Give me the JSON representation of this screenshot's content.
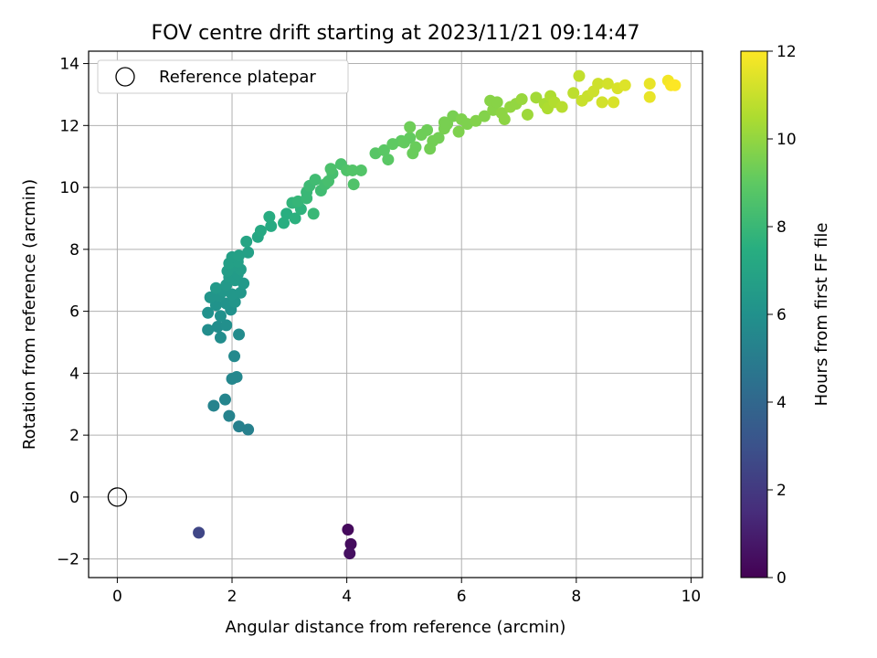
{
  "chart_data": {
    "type": "scatter",
    "title": "FOV centre drift starting at 2023/11/21 09:14:47",
    "xlabel": "Angular distance from reference (arcmin)",
    "ylabel": "Rotation from reference (arcmin)",
    "xlim": [
      -0.5,
      10.2
    ],
    "ylim": [
      -2.6,
      14.4
    ],
    "xticks": [
      0,
      2,
      4,
      6,
      8,
      10
    ],
    "yticks": [
      -2,
      0,
      2,
      4,
      6,
      8,
      10,
      12,
      14
    ],
    "grid": true,
    "legend": {
      "position": "top-left",
      "entries": [
        "Reference platepar"
      ]
    },
    "reference_point": {
      "label": "Reference platepar",
      "x": 0,
      "y": 0,
      "marker": "open-circle"
    },
    "colorbar": {
      "label": "Hours from first FF file",
      "colormap": "viridis",
      "range": [
        0,
        12
      ],
      "ticks": [
        0,
        2,
        4,
        6,
        8,
        10,
        12
      ]
    },
    "series": [
      {
        "points": [
          [
            4.02,
            -1.05,
            0.3
          ],
          [
            4.07,
            -1.52,
            0.4
          ],
          [
            4.05,
            -1.82,
            0.5
          ],
          [
            1.42,
            -1.15,
            2.5
          ],
          [
            2.28,
            2.18,
            5.2
          ],
          [
            2.12,
            2.28,
            5.2
          ],
          [
            1.95,
            2.62,
            5.3
          ],
          [
            1.68,
            2.95,
            5.3
          ],
          [
            1.88,
            3.15,
            5.4
          ],
          [
            2.08,
            3.88,
            5.5
          ],
          [
            2.0,
            3.82,
            5.5
          ],
          [
            2.04,
            4.55,
            5.6
          ],
          [
            2.12,
            5.25,
            5.7
          ],
          [
            1.8,
            5.15,
            5.8
          ],
          [
            1.58,
            5.4,
            5.8
          ],
          [
            1.75,
            5.5,
            5.8
          ],
          [
            1.9,
            5.55,
            5.9
          ],
          [
            1.58,
            5.95,
            6.0
          ],
          [
            1.98,
            6.05,
            6.0
          ],
          [
            1.8,
            5.85,
            6.0
          ],
          [
            1.72,
            6.2,
            6.1
          ],
          [
            1.9,
            6.25,
            6.1
          ],
          [
            2.05,
            6.3,
            6.2
          ],
          [
            1.62,
            6.45,
            6.2
          ],
          [
            1.78,
            6.5,
            6.2
          ],
          [
            1.85,
            6.65,
            6.3
          ],
          [
            2.0,
            6.55,
            6.3
          ],
          [
            2.15,
            6.6,
            6.3
          ],
          [
            1.72,
            6.75,
            6.4
          ],
          [
            1.9,
            6.85,
            6.4
          ],
          [
            2.2,
            6.9,
            6.4
          ],
          [
            2.05,
            7.0,
            6.5
          ],
          [
            1.95,
            7.1,
            6.5
          ],
          [
            2.1,
            7.2,
            6.5
          ],
          [
            1.92,
            7.3,
            6.6
          ],
          [
            2.15,
            7.35,
            6.6
          ],
          [
            2.0,
            7.45,
            6.6
          ],
          [
            1.95,
            7.55,
            6.7
          ],
          [
            2.1,
            7.6,
            6.7
          ],
          [
            2.0,
            7.75,
            6.7
          ],
          [
            2.12,
            7.8,
            6.8
          ],
          [
            2.28,
            7.9,
            6.8
          ],
          [
            2.25,
            8.25,
            7.0
          ],
          [
            2.45,
            8.4,
            7.1
          ],
          [
            2.5,
            8.6,
            7.2
          ],
          [
            2.68,
            8.75,
            7.3
          ],
          [
            2.65,
            9.05,
            7.4
          ],
          [
            2.9,
            8.85,
            7.5
          ],
          [
            2.95,
            9.15,
            7.5
          ],
          [
            3.1,
            9.0,
            7.6
          ],
          [
            3.2,
            9.3,
            7.7
          ],
          [
            3.05,
            9.5,
            7.8
          ],
          [
            3.15,
            9.55,
            7.9
          ],
          [
            3.3,
            9.65,
            8.0
          ],
          [
            3.42,
            9.15,
            8.0
          ],
          [
            3.3,
            9.85,
            8.0
          ],
          [
            3.35,
            10.05,
            8.1
          ],
          [
            3.45,
            10.25,
            8.2
          ],
          [
            3.55,
            9.9,
            8.2
          ],
          [
            3.62,
            10.1,
            8.3
          ],
          [
            3.68,
            10.2,
            8.4
          ],
          [
            3.75,
            10.45,
            8.4
          ],
          [
            3.72,
            10.6,
            8.5
          ],
          [
            3.9,
            10.75,
            8.5
          ],
          [
            4.0,
            10.55,
            8.6
          ],
          [
            4.12,
            10.1,
            8.6
          ],
          [
            4.1,
            10.55,
            8.7
          ],
          [
            4.25,
            10.55,
            8.7
          ],
          [
            4.5,
            11.1,
            8.8
          ],
          [
            4.65,
            11.2,
            8.9
          ],
          [
            4.72,
            10.9,
            8.9
          ],
          [
            4.8,
            11.4,
            9.0
          ],
          [
            4.95,
            11.5,
            9.0
          ],
          [
            5.1,
            11.6,
            9.1
          ],
          [
            5.0,
            11.45,
            9.1
          ],
          [
            5.2,
            11.3,
            9.2
          ],
          [
            5.15,
            11.1,
            9.2
          ],
          [
            5.3,
            11.7,
            9.3
          ],
          [
            5.1,
            11.95,
            9.3
          ],
          [
            5.4,
            11.85,
            9.3
          ],
          [
            5.5,
            11.5,
            9.4
          ],
          [
            5.45,
            11.25,
            9.4
          ],
          [
            5.6,
            11.6,
            9.4
          ],
          [
            5.7,
            11.9,
            9.5
          ],
          [
            5.75,
            12.05,
            9.5
          ],
          [
            5.85,
            12.3,
            9.5
          ],
          [
            5.7,
            12.1,
            9.5
          ],
          [
            6.0,
            12.2,
            9.6
          ],
          [
            6.1,
            12.05,
            9.6
          ],
          [
            5.95,
            11.8,
            9.6
          ],
          [
            6.25,
            12.15,
            9.7
          ],
          [
            6.4,
            12.3,
            9.7
          ],
          [
            6.5,
            12.8,
            9.8
          ],
          [
            6.55,
            12.5,
            9.8
          ],
          [
            6.62,
            12.75,
            9.8
          ],
          [
            6.7,
            12.4,
            9.9
          ],
          [
            6.75,
            12.2,
            9.9
          ],
          [
            6.85,
            12.6,
            10.0
          ],
          [
            6.95,
            12.7,
            10.0
          ],
          [
            7.05,
            12.85,
            10.1
          ],
          [
            7.15,
            12.35,
            10.2
          ],
          [
            7.3,
            12.9,
            10.3
          ],
          [
            7.45,
            12.7,
            10.4
          ],
          [
            7.55,
            12.95,
            10.5
          ],
          [
            7.5,
            12.55,
            10.5
          ],
          [
            7.62,
            12.75,
            10.6
          ],
          [
            7.75,
            12.6,
            10.7
          ],
          [
            7.95,
            13.05,
            10.8
          ],
          [
            8.05,
            13.6,
            10.9
          ],
          [
            8.1,
            12.8,
            11.0
          ],
          [
            8.2,
            12.95,
            11.0
          ],
          [
            8.3,
            13.1,
            11.1
          ],
          [
            8.38,
            13.35,
            11.1
          ],
          [
            8.45,
            12.75,
            11.2
          ],
          [
            8.55,
            13.35,
            11.2
          ],
          [
            8.65,
            12.75,
            11.3
          ],
          [
            8.72,
            13.2,
            11.3
          ],
          [
            8.85,
            13.3,
            11.4
          ],
          [
            9.28,
            13.35,
            11.6
          ],
          [
            9.28,
            12.92,
            11.6
          ],
          [
            9.6,
            13.45,
            11.8
          ],
          [
            9.65,
            13.3,
            11.9
          ],
          [
            9.72,
            13.3,
            12.0
          ]
        ]
      }
    ]
  }
}
